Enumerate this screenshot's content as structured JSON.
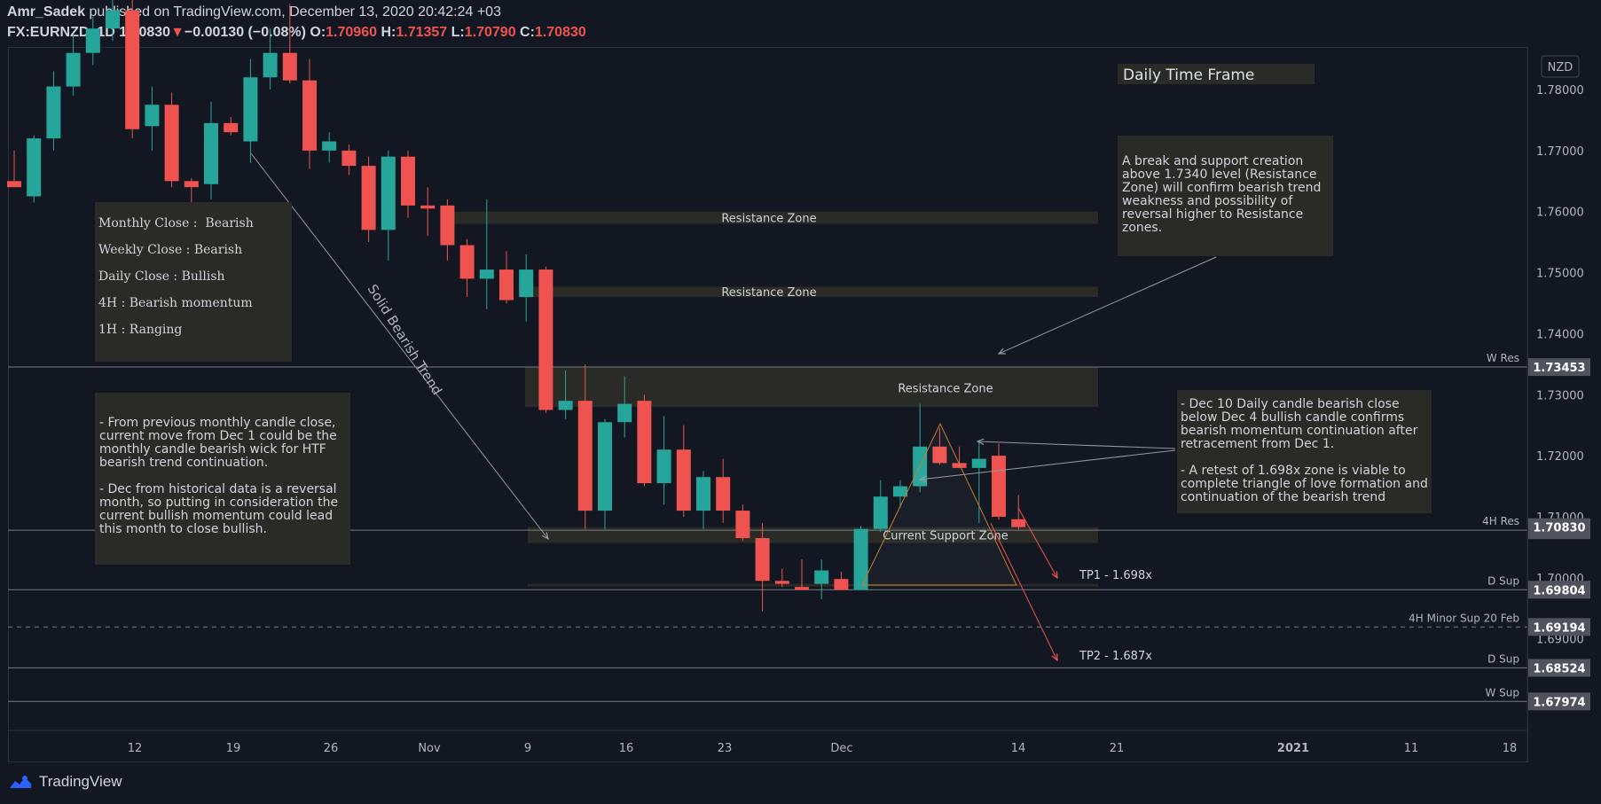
{
  "header": {
    "author": "Amr_Sadek",
    "published_text": " published on TradingView.com, December 13, 2020 20:42:24 +03",
    "symbol": "FX:EURNZD, 1D",
    "last": "1.70830",
    "arrow": "▼",
    "change": "−0.00130 (−0.08%)",
    "o_label": "O:",
    "o": "1.70960",
    "h_label": "H:",
    "h": "1.71357",
    "l_label": "L:",
    "l": "1.70790",
    "c_label": "C:",
    "c": "1.70830"
  },
  "brand": "TradingView",
  "currency_badge": "NZD",
  "title_box": "Daily Time Frame",
  "notes": {
    "bias": "Monthly Close :  Bearish\n\nWeekly Close : Bearish\n\nDaily Close : Bullish\n\n4H : Bearish momentum\n\n1H : Ranging",
    "monthly": "- From previous monthly candle close,\ncurrent move from Dec 1 could be the\nmonthly candle bearish wick for HTF\nbearish trend continuation.\n\n- Dec from historical data is a reversal\nmonth, so putting in consideration the\ncurrent bullish momentum could lead\nthis month to close bullish.",
    "resistance": "A break and support creation\nabove 1.7340 level (Resistance\nZone) will confirm bearish trend\nweakness and possibility of\nreversal higher to Resistance\nzones.",
    "dec10": "- Dec 10 Daily candle bearish close\nbelow Dec 4 bullish candle confirms\nbearish momentum continuation after\nretracement from Dec 1.\n\n- A retest of 1.698x zone is viable to\ncomplete triangle of love formation and\ncontinuation of the bearish trend"
  },
  "trend_label": "Solid Bearish Trend",
  "zones": [
    {
      "label": "Resistance Zone",
      "top": 1.76,
      "bottom": 1.758
    },
    {
      "label": "Resistance Zone",
      "top": 1.7477,
      "bottom": 1.746
    },
    {
      "label": "Resistance Zone",
      "top": 1.7345,
      "bottom": 1.728
    },
    {
      "label": "Current Support Zone",
      "top": 1.7083,
      "bottom": 1.7057
    }
  ],
  "levels": [
    {
      "label": "W Res",
      "price": 1.73453,
      "tag": "1.73453"
    },
    {
      "label": "4H Res",
      "price": 1.70779,
      "tag": "1.70779"
    },
    {
      "label": "D Sup",
      "price": 1.69804,
      "tag": "1.69804"
    },
    {
      "label": "4H Minor Sup 20 Feb",
      "price": 1.69194,
      "tag": "1.69194"
    },
    {
      "label": "D Sup",
      "price": 1.68524,
      "tag": "1.68524"
    },
    {
      "label": "W Sup",
      "price": 1.67974,
      "tag": "1.67974"
    }
  ],
  "last_price_tag": "1.70830",
  "targets": [
    {
      "label": "TP1 - 1.698x"
    },
    {
      "label": "TP2 - 1.687x"
    }
  ],
  "chart_data": {
    "type": "candlestick",
    "symbol": "FX:EURNZD",
    "timeframe": "1D",
    "y_range": [
      1.67,
      1.79
    ],
    "y_ticks": [
      "1.78000",
      "1.77000",
      "1.76000",
      "1.75000",
      "1.74000",
      "1.73000",
      "1.72000",
      "1.71000",
      "1.70000",
      "1.69000"
    ],
    "x_ticks": [
      "12",
      "19",
      "26",
      "Nov",
      "9",
      "16",
      "23",
      "Dec",
      "14",
      "21",
      "2021",
      "11",
      "18"
    ],
    "candles": [
      {
        "o": 1.765,
        "h": 1.77,
        "l": 1.764,
        "c": 1.764
      },
      {
        "o": 1.7625,
        "h": 1.7725,
        "l": 1.7615,
        "c": 1.772
      },
      {
        "o": 1.772,
        "h": 1.783,
        "l": 1.77,
        "c": 1.7805
      },
      {
        "o": 1.7805,
        "h": 1.789,
        "l": 1.779,
        "c": 1.786
      },
      {
        "o": 1.786,
        "h": 1.792,
        "l": 1.784,
        "c": 1.79
      },
      {
        "o": 1.79,
        "h": 1.795,
        "l": 1.788,
        "c": 1.793
      },
      {
        "o": 1.793,
        "h": 1.795,
        "l": 1.772,
        "c": 1.7735
      },
      {
        "o": 1.774,
        "h": 1.7805,
        "l": 1.77,
        "c": 1.7775
      },
      {
        "o": 1.7775,
        "h": 1.7795,
        "l": 1.764,
        "c": 1.765
      },
      {
        "o": 1.765,
        "h": 1.7655,
        "l": 1.759,
        "c": 1.764
      },
      {
        "o": 1.7645,
        "h": 1.778,
        "l": 1.762,
        "c": 1.7745
      },
      {
        "o": 1.7745,
        "h": 1.7755,
        "l": 1.7725,
        "c": 1.773
      },
      {
        "o": 1.7715,
        "h": 1.785,
        "l": 1.768,
        "c": 1.782
      },
      {
        "o": 1.782,
        "h": 1.79,
        "l": 1.78,
        "c": 1.786
      },
      {
        "o": 1.786,
        "h": 1.794,
        "l": 1.781,
        "c": 1.7815
      },
      {
        "o": 1.7815,
        "h": 1.785,
        "l": 1.767,
        "c": 1.77
      },
      {
        "o": 1.77,
        "h": 1.773,
        "l": 1.768,
        "c": 1.7715
      },
      {
        "o": 1.77,
        "h": 1.771,
        "l": 1.766,
        "c": 1.7675
      },
      {
        "o": 1.7675,
        "h": 1.769,
        "l": 1.755,
        "c": 1.757
      },
      {
        "o": 1.757,
        "h": 1.77,
        "l": 1.752,
        "c": 1.769
      },
      {
        "o": 1.769,
        "h": 1.77,
        "l": 1.759,
        "c": 1.761
      },
      {
        "o": 1.761,
        "h": 1.764,
        "l": 1.756,
        "c": 1.7605
      },
      {
        "o": 1.761,
        "h": 1.762,
        "l": 1.752,
        "c": 1.7545
      },
      {
        "o": 1.7545,
        "h": 1.7555,
        "l": 1.746,
        "c": 1.749
      },
      {
        "o": 1.749,
        "h": 1.762,
        "l": 1.744,
        "c": 1.7505
      },
      {
        "o": 1.7505,
        "h": 1.7535,
        "l": 1.745,
        "c": 1.7455
      },
      {
        "o": 1.746,
        "h": 1.753,
        "l": 1.742,
        "c": 1.7505
      },
      {
        "o": 1.7505,
        "h": 1.751,
        "l": 1.727,
        "c": 1.7275
      },
      {
        "o": 1.7275,
        "h": 1.734,
        "l": 1.726,
        "c": 1.729
      },
      {
        "o": 1.729,
        "h": 1.735,
        "l": 1.708,
        "c": 1.711
      },
      {
        "o": 1.711,
        "h": 1.726,
        "l": 1.708,
        "c": 1.7255
      },
      {
        "o": 1.7255,
        "h": 1.733,
        "l": 1.723,
        "c": 1.7285
      },
      {
        "o": 1.729,
        "h": 1.73,
        "l": 1.715,
        "c": 1.7155
      },
      {
        "o": 1.7155,
        "h": 1.7265,
        "l": 1.712,
        "c": 1.721
      },
      {
        "o": 1.721,
        "h": 1.725,
        "l": 1.71,
        "c": 1.711
      },
      {
        "o": 1.711,
        "h": 1.7175,
        "l": 1.708,
        "c": 1.7165
      },
      {
        "o": 1.7165,
        "h": 1.7195,
        "l": 1.709,
        "c": 1.711
      },
      {
        "o": 1.711,
        "h": 1.712,
        "l": 1.706,
        "c": 1.7065
      },
      {
        "o": 1.7065,
        "h": 1.709,
        "l": 1.6945,
        "c": 1.6995
      },
      {
        "o": 1.6995,
        "h": 1.7015,
        "l": 1.6985,
        "c": 1.699
      },
      {
        "o": 1.6985,
        "h": 1.703,
        "l": 1.698,
        "c": 1.698
      },
      {
        "o": 1.699,
        "h": 1.703,
        "l": 1.6965,
        "c": 1.7012
      },
      {
        "o": 1.6998,
        "h": 1.701,
        "l": 1.698,
        "c": 1.698
      },
      {
        "o": 1.698,
        "h": 1.7085,
        "l": 1.698,
        "c": 1.708
      },
      {
        "o": 1.708,
        "h": 1.716,
        "l": 1.7075,
        "c": 1.7133
      },
      {
        "o": 1.7133,
        "h": 1.716,
        "l": 1.7115,
        "c": 1.715
      },
      {
        "o": 1.715,
        "h": 1.7285,
        "l": 1.714,
        "c": 1.7215
      },
      {
        "o": 1.7215,
        "h": 1.7245,
        "l": 1.7185,
        "c": 1.7188
      },
      {
        "o": 1.7188,
        "h": 1.7215,
        "l": 1.718,
        "c": 1.718
      },
      {
        "o": 1.718,
        "h": 1.7225,
        "l": 1.709,
        "c": 1.7195
      },
      {
        "o": 1.72,
        "h": 1.722,
        "l": 1.7095,
        "c": 1.71
      },
      {
        "o": 1.7096,
        "h": 1.71357,
        "l": 1.7079,
        "c": 1.7083
      }
    ]
  }
}
